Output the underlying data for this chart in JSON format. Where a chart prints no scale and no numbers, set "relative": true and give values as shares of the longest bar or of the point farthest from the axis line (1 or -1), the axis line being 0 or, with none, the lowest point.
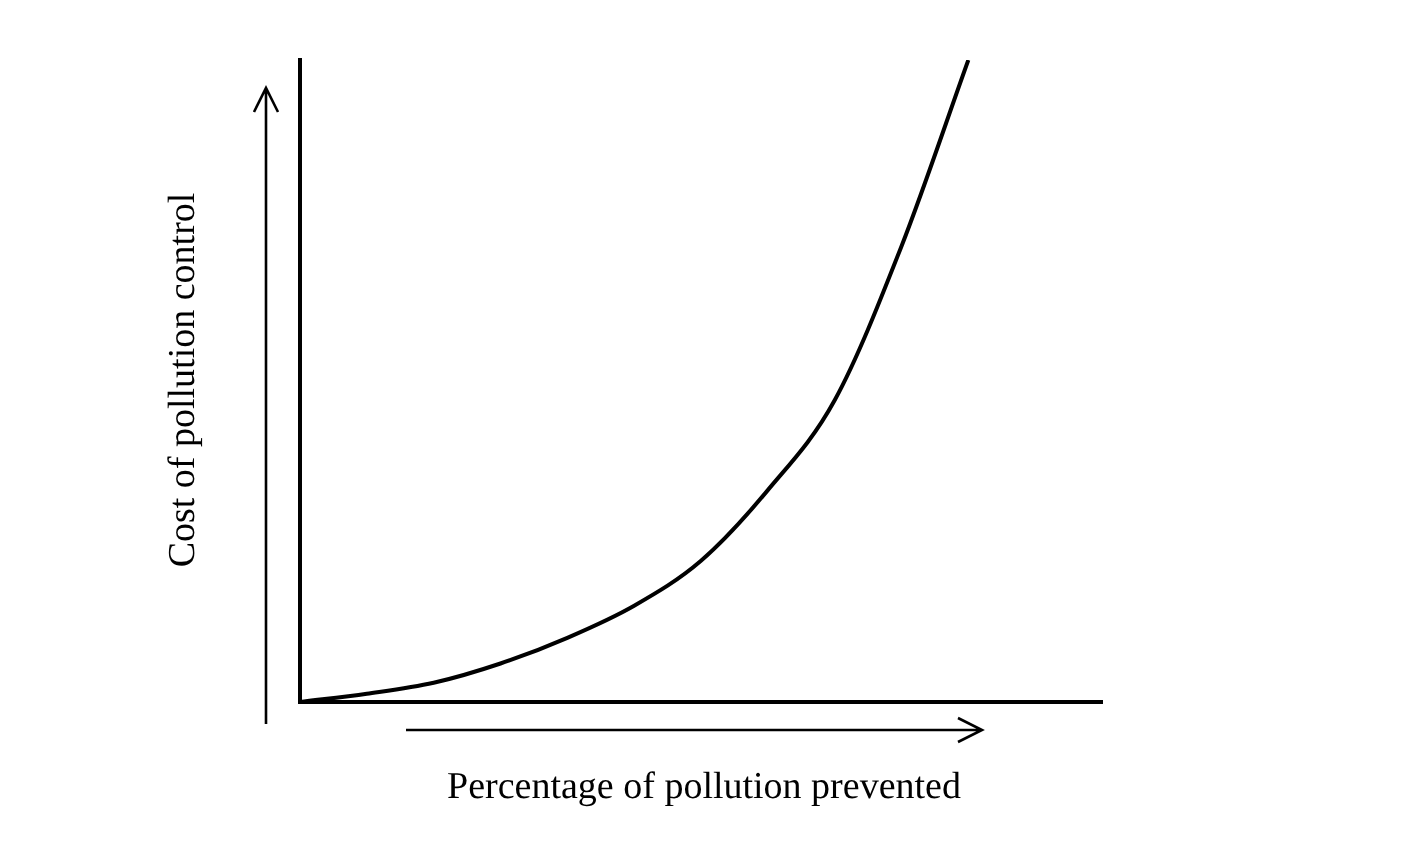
{
  "chart_data": {
    "type": "line",
    "relative": true,
    "xlabel": "Percentage of pollution prevented",
    "ylabel": "Cost of pollution control",
    "categories": [
      null,
      null,
      null,
      null,
      null,
      null,
      null,
      null,
      null,
      null,
      null,
      null,
      null
    ],
    "series": [
      {
        "color": "#000000",
        "values": [
          0,
          0.013,
          0.03,
          0.06,
          0.1,
          0.15,
          0.22,
          0.33,
          0.47,
          0.71,
          1.0,
          null,
          null
        ]
      }
    ],
    "marker": "none",
    "grid": false,
    "legend": false,
    "tick_labels": false
  }
}
